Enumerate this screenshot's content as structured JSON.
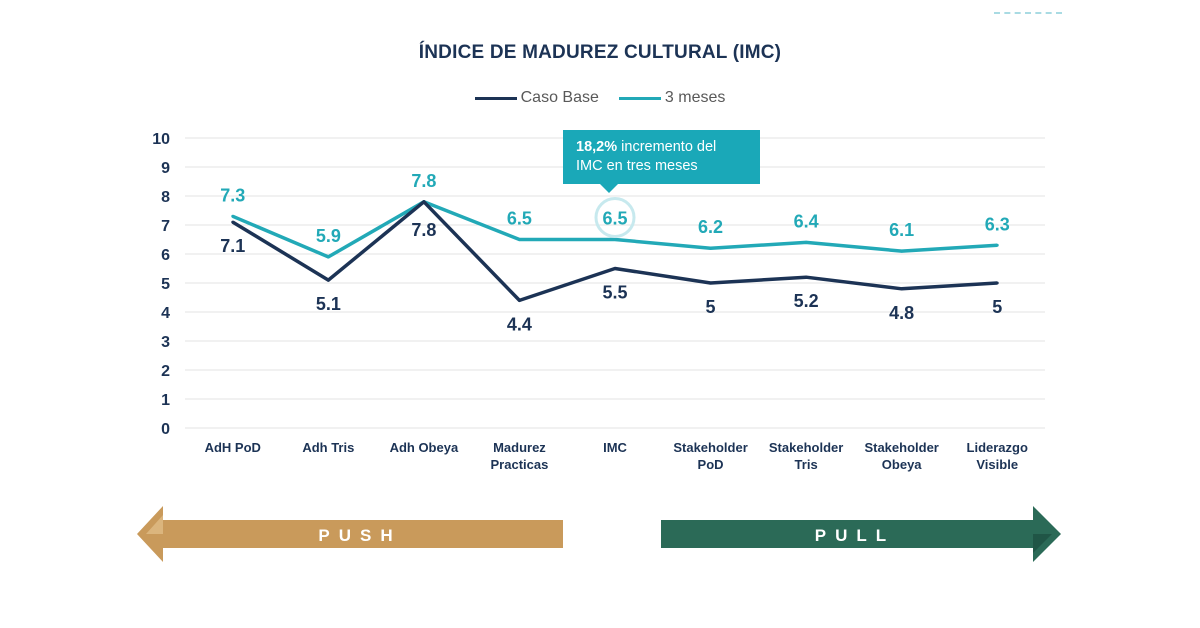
{
  "chart_data": {
    "type": "line",
    "title": "ÍNDICE DE MADUREZ CULTURAL (IMC)",
    "categories": [
      [
        "AdH PoD"
      ],
      [
        "Adh Tris"
      ],
      [
        "Adh Obeya"
      ],
      [
        "Madurez",
        "Practicas"
      ],
      [
        "IMC"
      ],
      [
        "Stakeholder",
        "PoD"
      ],
      [
        "Stakeholder",
        "Tris"
      ],
      [
        "Stakeholder",
        "Obeya"
      ],
      [
        "Liderazgo",
        "Visible"
      ]
    ],
    "series": [
      {
        "name": "Caso Base",
        "color": "#1c3355",
        "values": [
          7.1,
          5.1,
          7.8,
          4.4,
          5.5,
          5,
          5.2,
          4.8,
          5
        ],
        "labels": [
          "7.1",
          "5.1",
          "7.8",
          "4.4",
          "5.5",
          "5",
          "5.2",
          "4.8",
          "5"
        ]
      },
      {
        "name": "3 meses",
        "color": "#22a9b7",
        "values": [
          7.3,
          5.9,
          7.8,
          6.5,
          6.5,
          6.2,
          6.4,
          6.1,
          6.3
        ],
        "labels": [
          "7.3",
          "5.9",
          "7.8",
          "6.5",
          "6.5",
          "6.2",
          "6.4",
          "6.1",
          "6.3"
        ]
      }
    ],
    "ylim": [
      0,
      10
    ],
    "yticks": [
      "0",
      "1",
      "2",
      "3",
      "4",
      "5",
      "6",
      "7",
      "8",
      "9",
      "10"
    ],
    "grid": true,
    "legend_position": "top-center"
  },
  "callout": {
    "bold": "18,2%",
    "text_line1": " incremento del",
    "text_line2": "IMC en tres meses",
    "highlight_category": "IMC"
  },
  "arrows": {
    "push": {
      "label": "PUSH",
      "color": "#c99a5b",
      "direction": "left"
    },
    "pull": {
      "label": "PULL",
      "color": "#2b6a57",
      "direction": "right"
    }
  }
}
